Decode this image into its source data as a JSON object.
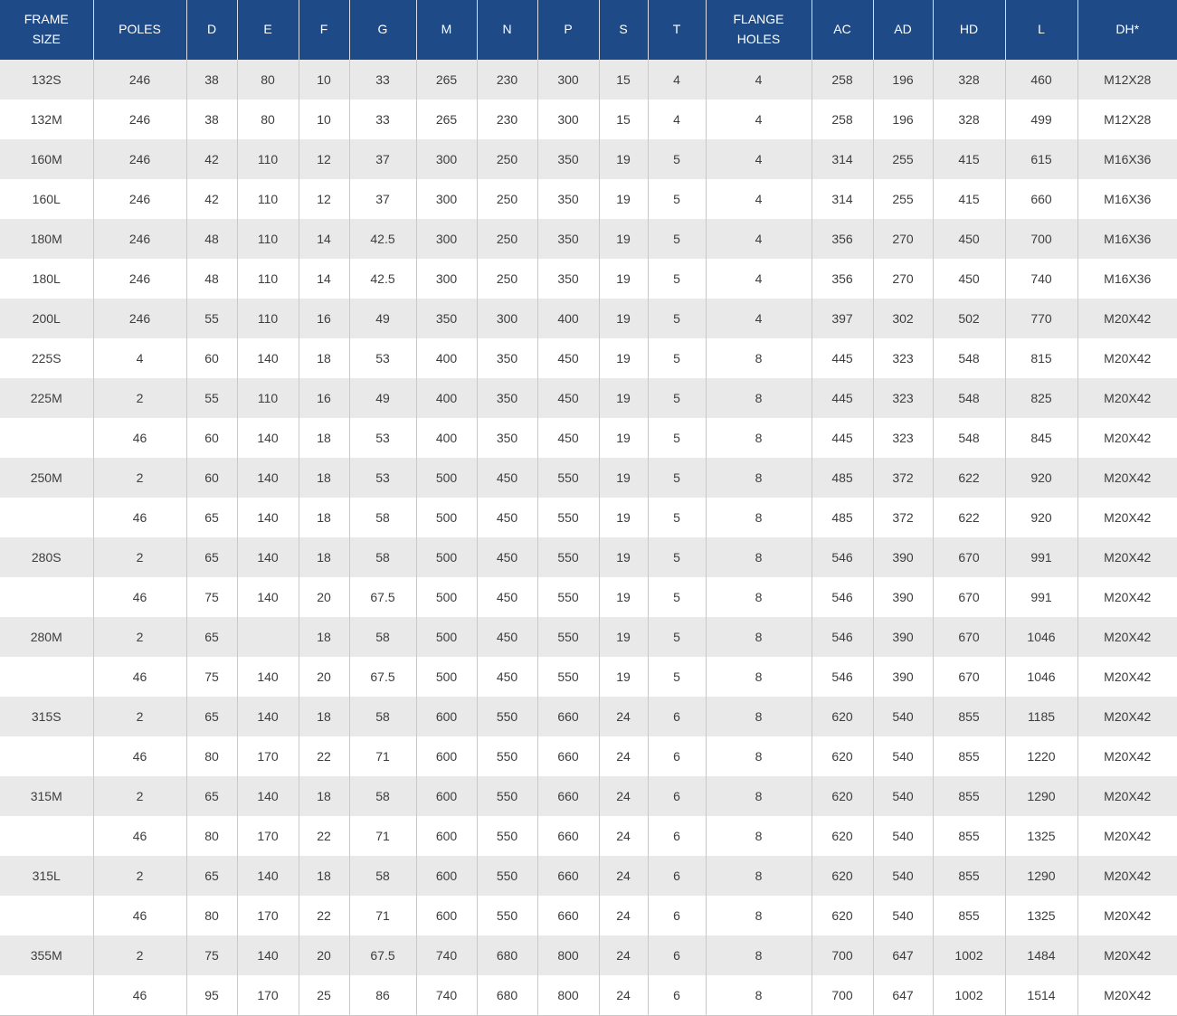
{
  "colors": {
    "header_bg": "#1e4b87",
    "header_text": "#ffffff",
    "row_alt_bg": "#e9e9e9",
    "row_bg": "#ffffff",
    "grid_line": "#c9c9c9",
    "cell_text": "#3d3d3d"
  },
  "table": {
    "headers": [
      {
        "key": "frame-size",
        "label": "FRAME\nSIZE"
      },
      {
        "key": "poles",
        "label": "POLES"
      },
      {
        "key": "d",
        "label": "D"
      },
      {
        "key": "e",
        "label": "E"
      },
      {
        "key": "f",
        "label": "F"
      },
      {
        "key": "g",
        "label": "G"
      },
      {
        "key": "m",
        "label": "M"
      },
      {
        "key": "n",
        "label": "N"
      },
      {
        "key": "p",
        "label": "P"
      },
      {
        "key": "s",
        "label": "S"
      },
      {
        "key": "t",
        "label": "T"
      },
      {
        "key": "flange-holes",
        "label": "FLANGE\nHOLES"
      },
      {
        "key": "ac",
        "label": "AC"
      },
      {
        "key": "ad",
        "label": "AD"
      },
      {
        "key": "hd",
        "label": "HD"
      },
      {
        "key": "l",
        "label": "L"
      },
      {
        "key": "dh",
        "label": "DH*"
      }
    ],
    "rows": [
      [
        "132S",
        "246",
        "38",
        "80",
        "10",
        "33",
        "265",
        "230",
        "300",
        "15",
        "4",
        "4",
        "258",
        "196",
        "328",
        "460",
        "M12X28"
      ],
      [
        "132M",
        "246",
        "38",
        "80",
        "10",
        "33",
        "265",
        "230",
        "300",
        "15",
        "4",
        "4",
        "258",
        "196",
        "328",
        "499",
        "M12X28"
      ],
      [
        "160M",
        "246",
        "42",
        "110",
        "12",
        "37",
        "300",
        "250",
        "350",
        "19",
        "5",
        "4",
        "314",
        "255",
        "415",
        "615",
        "M16X36"
      ],
      [
        "160L",
        "246",
        "42",
        "110",
        "12",
        "37",
        "300",
        "250",
        "350",
        "19",
        "5",
        "4",
        "314",
        "255",
        "415",
        "660",
        "M16X36"
      ],
      [
        "180M",
        "246",
        "48",
        "110",
        "14",
        "42.5",
        "300",
        "250",
        "350",
        "19",
        "5",
        "4",
        "356",
        "270",
        "450",
        "700",
        "M16X36"
      ],
      [
        "180L",
        "246",
        "48",
        "110",
        "14",
        "42.5",
        "300",
        "250",
        "350",
        "19",
        "5",
        "4",
        "356",
        "270",
        "450",
        "740",
        "M16X36"
      ],
      [
        "200L",
        "246",
        "55",
        "110",
        "16",
        "49",
        "350",
        "300",
        "400",
        "19",
        "5",
        "4",
        "397",
        "302",
        "502",
        "770",
        "M20X42"
      ],
      [
        "225S",
        "4",
        "60",
        "140",
        "18",
        "53",
        "400",
        "350",
        "450",
        "19",
        "5",
        "8",
        "445",
        "323",
        "548",
        "815",
        "M20X42"
      ],
      [
        "225M",
        "2",
        "55",
        "110",
        "16",
        "49",
        "400",
        "350",
        "450",
        "19",
        "5",
        "8",
        "445",
        "323",
        "548",
        "825",
        "M20X42"
      ],
      [
        "",
        "46",
        "60",
        "140",
        "18",
        "53",
        "400",
        "350",
        "450",
        "19",
        "5",
        "8",
        "445",
        "323",
        "548",
        "845",
        "M20X42"
      ],
      [
        "250M",
        "2",
        "60",
        "140",
        "18",
        "53",
        "500",
        "450",
        "550",
        "19",
        "5",
        "8",
        "485",
        "372",
        "622",
        "920",
        "M20X42"
      ],
      [
        "",
        "46",
        "65",
        "140",
        "18",
        "58",
        "500",
        "450",
        "550",
        "19",
        "5",
        "8",
        "485",
        "372",
        "622",
        "920",
        "M20X42"
      ],
      [
        "280S",
        "2",
        "65",
        "140",
        "18",
        "58",
        "500",
        "450",
        "550",
        "19",
        "5",
        "8",
        "546",
        "390",
        "670",
        "991",
        "M20X42"
      ],
      [
        "",
        "46",
        "75",
        "140",
        "20",
        "67.5",
        "500",
        "450",
        "550",
        "19",
        "5",
        "8",
        "546",
        "390",
        "670",
        "991",
        "M20X42"
      ],
      [
        "280M",
        "2",
        "65",
        "",
        "18",
        "58",
        "500",
        "450",
        "550",
        "19",
        "5",
        "8",
        "546",
        "390",
        "670",
        "1046",
        "M20X42"
      ],
      [
        "",
        "46",
        "75",
        "140",
        "20",
        "67.5",
        "500",
        "450",
        "550",
        "19",
        "5",
        "8",
        "546",
        "390",
        "670",
        "1046",
        "M20X42"
      ],
      [
        "315S",
        "2",
        "65",
        "140",
        "18",
        "58",
        "600",
        "550",
        "660",
        "24",
        "6",
        "8",
        "620",
        "540",
        "855",
        "1185",
        "M20X42"
      ],
      [
        "",
        "46",
        "80",
        "170",
        "22",
        "71",
        "600",
        "550",
        "660",
        "24",
        "6",
        "8",
        "620",
        "540",
        "855",
        "1220",
        "M20X42"
      ],
      [
        "315M",
        "2",
        "65",
        "140",
        "18",
        "58",
        "600",
        "550",
        "660",
        "24",
        "6",
        "8",
        "620",
        "540",
        "855",
        "1290",
        "M20X42"
      ],
      [
        "",
        "46",
        "80",
        "170",
        "22",
        "71",
        "600",
        "550",
        "660",
        "24",
        "6",
        "8",
        "620",
        "540",
        "855",
        "1325",
        "M20X42"
      ],
      [
        "315L",
        "2",
        "65",
        "140",
        "18",
        "58",
        "600",
        "550",
        "660",
        "24",
        "6",
        "8",
        "620",
        "540",
        "855",
        "1290",
        "M20X42"
      ],
      [
        "",
        "46",
        "80",
        "170",
        "22",
        "71",
        "600",
        "550",
        "660",
        "24",
        "6",
        "8",
        "620",
        "540",
        "855",
        "1325",
        "M20X42"
      ],
      [
        "355M",
        "2",
        "75",
        "140",
        "20",
        "67.5",
        "740",
        "680",
        "800",
        "24",
        "6",
        "8",
        "700",
        "647",
        "1002",
        "1484",
        "M20X42"
      ],
      [
        "",
        "46",
        "95",
        "170",
        "25",
        "86",
        "740",
        "680",
        "800",
        "24",
        "6",
        "8",
        "700",
        "647",
        "1002",
        "1514",
        "M20X42"
      ]
    ]
  }
}
